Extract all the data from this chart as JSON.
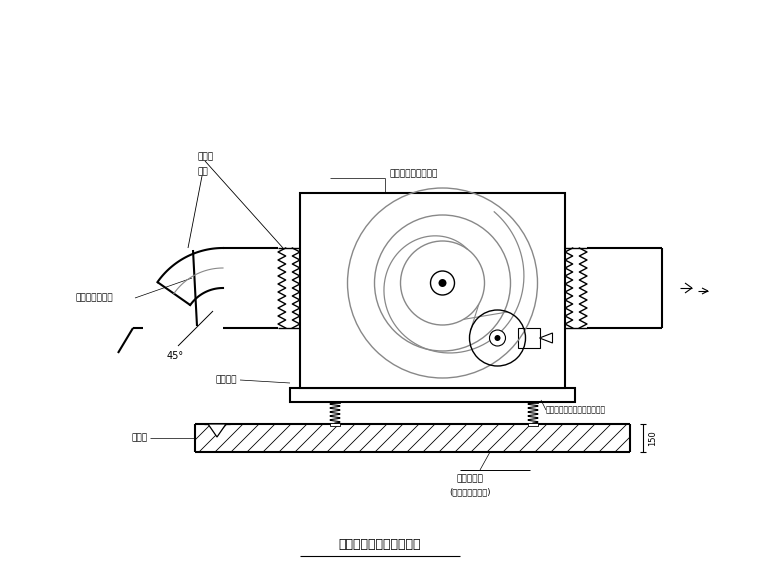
{
  "title": "屋面箱式通风机安装详图",
  "bg_color": "#ffffff",
  "line_color": "#000000",
  "gray_color": "#888888",
  "labels": {
    "flexible_pipe": "软接管",
    "air_duct": "风管",
    "fan": "防震型离心式通风机",
    "stainless_valve": "设不锈钢蝶止阀",
    "angle_label": "45°",
    "bracket": "槽钢支架",
    "roof_surface": "屋顶面",
    "spring_reducer": "弹簧减震器及橡胶防振垫处处",
    "concrete_base": "混凝土墓墩",
    "concrete_note": "(由土建配合施工)",
    "dim_150": "150"
  }
}
